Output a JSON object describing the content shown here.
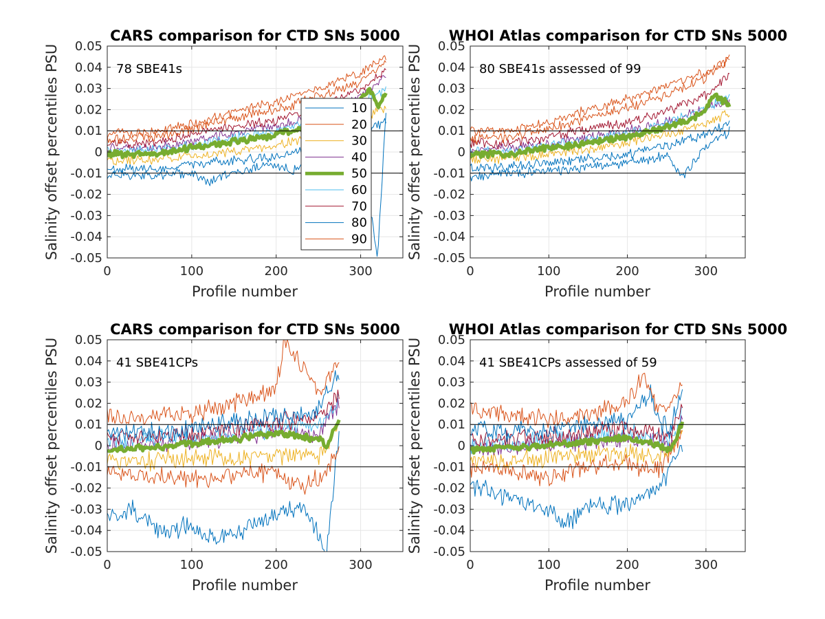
{
  "colors": {
    "p10": "#0072bd",
    "p20": "#d95319",
    "p30": "#edb120",
    "p40": "#7e2f8e",
    "p50": "#77ac30",
    "p60": "#4dbeee",
    "p70": "#a2142f",
    "p80": "#0072bd",
    "p90": "#d95319",
    "refline": "#000000",
    "grid": "#e6e6e6",
    "axis": "#262626"
  },
  "chart_data": [
    {
      "type": "line",
      "title": "CARS comparison for CTD SNs 5000",
      "xlabel": "Profile number",
      "ylabel": "Salinity offset percentiles PSU",
      "annotation": "78 SBE41s",
      "xlim": [
        0,
        350
      ],
      "ylim": [
        -0.05,
        0.05
      ],
      "xticks": [
        "0",
        "100",
        "200",
        "300"
      ],
      "yticks": [
        "-0.05",
        "-0.04",
        "-0.03",
        "-0.02",
        "-0.01",
        "0",
        "0.01",
        "0.02",
        "0.03",
        "0.04",
        "0.05"
      ],
      "grid": true,
      "reference_lines": [
        0.01,
        -0.01
      ],
      "legend": {
        "placement": "inside-right",
        "entries": [
          "10",
          "20",
          "30",
          "40",
          "50",
          "60",
          "70",
          "80",
          "90"
        ]
      },
      "series": [
        {
          "name": "10",
          "x": [
            0,
            50,
            100,
            120,
            150,
            200,
            220,
            250,
            280,
            300,
            320,
            330
          ],
          "y": [
            -0.011,
            -0.011,
            -0.01,
            -0.014,
            -0.009,
            -0.006,
            -0.009,
            -0.004,
            -0.003,
            0.002,
            -0.05,
            0.02
          ]
        },
        {
          "name": "20",
          "x": [
            0,
            50,
            100,
            150,
            200,
            250,
            300,
            330
          ],
          "y": [
            0.009,
            0.009,
            0.013,
            0.019,
            0.024,
            0.03,
            0.037,
            0.045
          ]
        },
        {
          "name": "30",
          "x": [
            0,
            50,
            100,
            150,
            200,
            250,
            300,
            330
          ],
          "y": [
            -0.004,
            -0.004,
            -0.002,
            0.0,
            0.003,
            0.008,
            0.015,
            0.021
          ]
        },
        {
          "name": "40",
          "x": [
            0,
            50,
            100,
            150,
            200,
            250,
            300,
            330
          ],
          "y": [
            0.002,
            0.002,
            0.005,
            0.009,
            0.012,
            0.018,
            0.026,
            0.035
          ]
        },
        {
          "name": "50",
          "x": [
            0,
            50,
            100,
            150,
            200,
            230,
            250,
            280,
            300,
            310,
            320,
            330
          ],
          "y": [
            -0.001,
            -0.001,
            0.002,
            0.005,
            0.008,
            0.011,
            0.015,
            0.019,
            0.024,
            0.03,
            0.022,
            0.028
          ]
        },
        {
          "name": "60",
          "x": [
            0,
            50,
            100,
            150,
            200,
            250,
            300,
            330
          ],
          "y": [
            0.0,
            0.001,
            0.003,
            0.007,
            0.01,
            0.016,
            0.024,
            0.03
          ]
        },
        {
          "name": "70",
          "x": [
            0,
            50,
            100,
            150,
            200,
            250,
            300,
            330
          ],
          "y": [
            0.004,
            0.004,
            0.008,
            0.012,
            0.015,
            0.021,
            0.03,
            0.038
          ]
        },
        {
          "name": "80",
          "x": [
            0,
            50,
            100,
            150,
            200,
            250,
            300,
            330
          ],
          "y": [
            -0.008,
            -0.008,
            -0.006,
            -0.004,
            -0.002,
            0.003,
            0.009,
            0.015
          ]
        },
        {
          "name": "90",
          "x": [
            0,
            50,
            100,
            150,
            200,
            250,
            300,
            330
          ],
          "y": [
            0.006,
            0.007,
            0.011,
            0.016,
            0.02,
            0.026,
            0.033,
            0.042
          ]
        }
      ]
    },
    {
      "type": "line",
      "title": "WHOI Atlas comparison for CTD SNs 5000",
      "xlabel": "Profile number",
      "ylabel": "Salinity offset percentiles PSU",
      "annotation": "80 SBE41s assessed of 99",
      "xlim": [
        0,
        350
      ],
      "ylim": [
        -0.05,
        0.05
      ],
      "xticks": [
        "0",
        "100",
        "200",
        "300"
      ],
      "yticks": [
        "-0.05",
        "-0.04",
        "-0.03",
        "-0.02",
        "-0.01",
        "0",
        "0.01",
        "0.02",
        "0.03",
        "0.04",
        "0.05"
      ],
      "grid": true,
      "reference_lines": [
        0.01,
        -0.01
      ],
      "series": [
        {
          "name": "10",
          "x": [
            0,
            50,
            100,
            150,
            200,
            250,
            270,
            300,
            330
          ],
          "y": [
            -0.012,
            -0.01,
            -0.009,
            -0.007,
            -0.005,
            -0.002,
            -0.012,
            0.002,
            0.01
          ]
        },
        {
          "name": "20",
          "x": [
            0,
            50,
            100,
            150,
            200,
            250,
            300,
            330
          ],
          "y": [
            0.01,
            0.01,
            0.014,
            0.02,
            0.025,
            0.031,
            0.038,
            0.044
          ]
        },
        {
          "name": "30",
          "x": [
            0,
            50,
            100,
            150,
            200,
            250,
            300,
            330
          ],
          "y": [
            -0.004,
            -0.003,
            -0.001,
            0.001,
            0.004,
            0.008,
            0.013,
            0.018
          ]
        },
        {
          "name": "40",
          "x": [
            0,
            50,
            100,
            150,
            200,
            250,
            300,
            330
          ],
          "y": [
            0.001,
            0.002,
            0.004,
            0.007,
            0.01,
            0.014,
            0.02,
            0.025
          ]
        },
        {
          "name": "50",
          "x": [
            0,
            50,
            100,
            150,
            200,
            250,
            280,
            300,
            310,
            330
          ],
          "y": [
            -0.001,
            -0.001,
            0.002,
            0.004,
            0.007,
            0.012,
            0.015,
            0.02,
            0.027,
            0.022
          ]
        },
        {
          "name": "60",
          "x": [
            0,
            50,
            100,
            150,
            200,
            250,
            300,
            330
          ],
          "y": [
            0.0,
            0.001,
            0.003,
            0.006,
            0.009,
            0.014,
            0.02,
            0.027
          ]
        },
        {
          "name": "70",
          "x": [
            0,
            50,
            100,
            150,
            200,
            250,
            300,
            330
          ],
          "y": [
            0.004,
            0.004,
            0.007,
            0.011,
            0.014,
            0.019,
            0.027,
            0.037
          ]
        },
        {
          "name": "80",
          "x": [
            0,
            50,
            100,
            150,
            200,
            250,
            300,
            330
          ],
          "y": [
            -0.008,
            -0.007,
            -0.005,
            -0.003,
            -0.001,
            0.003,
            0.008,
            0.014
          ]
        },
        {
          "name": "90",
          "x": [
            0,
            50,
            100,
            150,
            200,
            250,
            300,
            330
          ],
          "y": [
            0.006,
            0.007,
            0.011,
            0.016,
            0.021,
            0.027,
            0.035,
            0.043
          ]
        }
      ]
    },
    {
      "type": "line",
      "title": "CARS comparison for CTD SNs 5000",
      "xlabel": "Profile number",
      "ylabel": "Salinity offset percentiles PSU",
      "annotation": "41 SBE41CPs",
      "xlim": [
        0,
        350
      ],
      "ylim": [
        -0.05,
        0.05
      ],
      "xticks": [
        "0",
        "100",
        "200",
        "300"
      ],
      "yticks": [
        "-0.05",
        "-0.04",
        "-0.03",
        "-0.02",
        "-0.01",
        "0",
        "0.01",
        "0.02",
        "0.03",
        "0.04",
        "0.05"
      ],
      "grid": true,
      "reference_lines": [
        0.01,
        -0.01
      ],
      "series": [
        {
          "name": "10",
          "x": [
            0,
            30,
            60,
            100,
            130,
            160,
            200,
            230,
            260,
            270,
            275
          ],
          "y": [
            -0.033,
            -0.03,
            -0.04,
            -0.038,
            -0.045,
            -0.04,
            -0.032,
            -0.028,
            -0.05,
            -0.01,
            0.005
          ]
        },
        {
          "name": "20",
          "x": [
            0,
            50,
            100,
            150,
            200,
            230,
            260,
            275
          ],
          "y": [
            -0.012,
            -0.015,
            -0.016,
            -0.014,
            -0.012,
            -0.02,
            -0.012,
            0.0
          ]
        },
        {
          "name": "30",
          "x": [
            0,
            50,
            100,
            150,
            200,
            250,
            275
          ],
          "y": [
            -0.008,
            -0.007,
            -0.006,
            -0.005,
            -0.005,
            -0.005,
            0.01
          ]
        },
        {
          "name": "40",
          "x": [
            0,
            50,
            100,
            150,
            200,
            250,
            275
          ],
          "y": [
            0.0,
            0.001,
            0.002,
            0.004,
            0.006,
            0.006,
            0.02
          ]
        },
        {
          "name": "50",
          "x": [
            0,
            50,
            100,
            150,
            200,
            250,
            260,
            275
          ],
          "y": [
            -0.002,
            -0.001,
            0.001,
            0.003,
            0.006,
            0.003,
            0.0,
            0.013
          ]
        },
        {
          "name": "60",
          "x": [
            0,
            50,
            100,
            150,
            200,
            250,
            275
          ],
          "y": [
            0.002,
            0.003,
            0.004,
            0.006,
            0.008,
            0.009,
            0.022
          ]
        },
        {
          "name": "70",
          "x": [
            0,
            50,
            100,
            150,
            200,
            250,
            275
          ],
          "y": [
            0.004,
            0.004,
            0.005,
            0.008,
            0.011,
            0.012,
            0.026
          ]
        },
        {
          "name": "80",
          "x": [
            0,
            50,
            100,
            150,
            200,
            250,
            275
          ],
          "y": [
            0.006,
            0.006,
            0.008,
            0.011,
            0.014,
            0.016,
            0.035
          ]
        },
        {
          "name": "90",
          "x": [
            0,
            50,
            100,
            150,
            200,
            210,
            250,
            275
          ],
          "y": [
            0.013,
            0.014,
            0.015,
            0.02,
            0.028,
            0.05,
            0.025,
            0.04
          ]
        }
      ]
    },
    {
      "type": "line",
      "title": "WHOI Atlas comparison for CTD SNs 5000",
      "xlabel": "Profile number",
      "ylabel": "Salinity offset percentiles PSU",
      "annotation": "41 SBE41CPs assessed of 59",
      "xlim": [
        0,
        350
      ],
      "ylim": [
        -0.05,
        0.05
      ],
      "xticks": [
        "0",
        "100",
        "200",
        "300"
      ],
      "yticks": [
        "-0.05",
        "-0.04",
        "-0.03",
        "-0.02",
        "-0.01",
        "0",
        "0.01",
        "0.02",
        "0.03",
        "0.04",
        "0.05"
      ],
      "grid": true,
      "reference_lines": [
        0.01,
        -0.01
      ],
      "series": [
        {
          "name": "10",
          "x": [
            0,
            50,
            100,
            120,
            150,
            200,
            240,
            255,
            270
          ],
          "y": [
            -0.018,
            -0.025,
            -0.03,
            -0.038,
            -0.028,
            -0.028,
            -0.02,
            -0.01,
            0.0
          ]
        },
        {
          "name": "20",
          "x": [
            0,
            50,
            100,
            150,
            200,
            240,
            255,
            270
          ],
          "y": [
            -0.01,
            -0.012,
            -0.015,
            -0.01,
            -0.008,
            -0.012,
            -0.003,
            0.005
          ]
        },
        {
          "name": "30",
          "x": [
            0,
            50,
            100,
            150,
            200,
            240,
            255,
            270
          ],
          "y": [
            -0.007,
            -0.007,
            -0.006,
            -0.004,
            -0.004,
            -0.005,
            -0.002,
            0.008
          ]
        },
        {
          "name": "40",
          "x": [
            0,
            50,
            100,
            150,
            200,
            240,
            255,
            270
          ],
          "y": [
            -0.001,
            -0.001,
            0.0,
            0.002,
            0.003,
            0.002,
            0.0,
            0.012
          ]
        },
        {
          "name": "50",
          "x": [
            0,
            50,
            100,
            150,
            200,
            240,
            255,
            270
          ],
          "y": [
            -0.002,
            -0.001,
            0.0,
            0.002,
            0.004,
            0.0,
            -0.002,
            0.011
          ]
        },
        {
          "name": "60",
          "x": [
            0,
            50,
            100,
            150,
            200,
            240,
            255,
            270
          ],
          "y": [
            0.001,
            0.001,
            0.002,
            0.004,
            0.006,
            0.003,
            0.002,
            0.015
          ]
        },
        {
          "name": "70",
          "x": [
            0,
            50,
            100,
            150,
            200,
            240,
            255,
            270
          ],
          "y": [
            0.003,
            0.003,
            0.004,
            0.006,
            0.008,
            0.006,
            0.004,
            0.02
          ]
        },
        {
          "name": "80",
          "x": [
            0,
            50,
            100,
            150,
            200,
            230,
            240,
            255,
            270
          ],
          "y": [
            0.008,
            0.007,
            0.008,
            0.01,
            0.012,
            0.025,
            0.01,
            0.008,
            0.026
          ]
        },
        {
          "name": "90",
          "x": [
            0,
            50,
            100,
            150,
            200,
            220,
            240,
            255,
            270
          ],
          "y": [
            0.018,
            0.015,
            0.013,
            0.015,
            0.02,
            0.033,
            0.016,
            0.02,
            0.029
          ]
        }
      ]
    }
  ]
}
